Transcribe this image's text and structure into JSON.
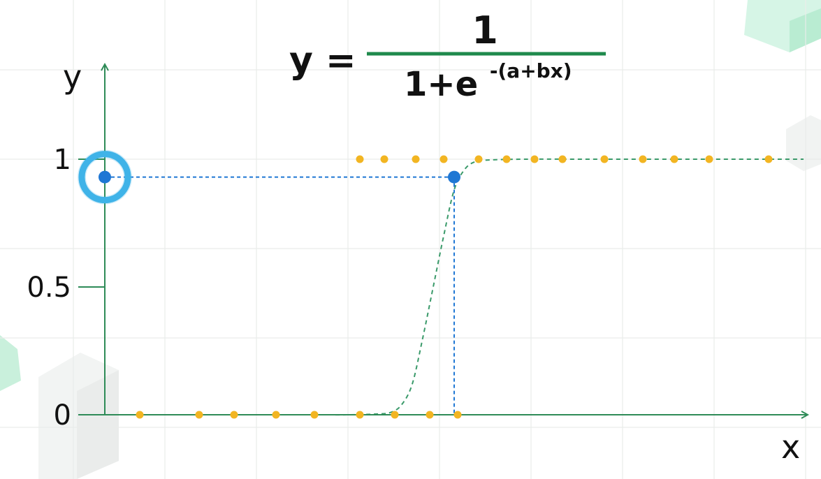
{
  "formula": {
    "lhs": "y =",
    "numerator": "1",
    "denominator_base": "1+e",
    "denominator_exponent": "-(a+bx)"
  },
  "colors": {
    "axis": "#2e8b57",
    "curve": "#3a9a6a",
    "points": "#f2b522",
    "highlight": "#1f77d4",
    "highlight_ring": "#3fb3e8",
    "decor_cube": "#bff0d6"
  },
  "chart_data": {
    "type": "scatter",
    "title": "",
    "xlabel": "x",
    "ylabel": "y",
    "xlim": [
      0,
      20
    ],
    "ylim": [
      0,
      1
    ],
    "grid": true,
    "yticks": [
      {
        "value": 0,
        "label": "0"
      },
      {
        "value": 0.5,
        "label": "0.5"
      },
      {
        "value": 1,
        "label": "1"
      }
    ],
    "series": [
      {
        "marker": "dots",
        "x": [
          1,
          2.7,
          3.7,
          4.9,
          6,
          7.3,
          8.3,
          9.3,
          10.1,
          7.3,
          8,
          8.9,
          9.7,
          10.7,
          11.5,
          12.3,
          13.1,
          14.3,
          15.4,
          16.3,
          17.3,
          19
        ],
        "y": [
          0,
          0,
          0,
          0,
          0,
          0,
          0,
          0,
          0,
          1,
          1,
          1,
          1,
          1,
          1,
          1,
          1,
          1,
          1,
          1,
          1,
          1
        ]
      },
      {
        "type": "line",
        "style": "dashed",
        "x": [
          0,
          2,
          4,
          6,
          7,
          7.8,
          8.2,
          8.5,
          8.8,
          9.1,
          9.4,
          9.7,
          10,
          10.3,
          10.6,
          11,
          12,
          14,
          16,
          18,
          20
        ],
        "y": [
          0,
          0,
          0,
          0,
          0,
          0.003,
          0.01,
          0.04,
          0.12,
          0.3,
          0.5,
          0.7,
          0.88,
          0.96,
          0.99,
          0.997,
          1,
          1,
          1,
          1,
          1
        ]
      }
    ],
    "highlight": {
      "x": 10,
      "y": 0.93
    }
  }
}
